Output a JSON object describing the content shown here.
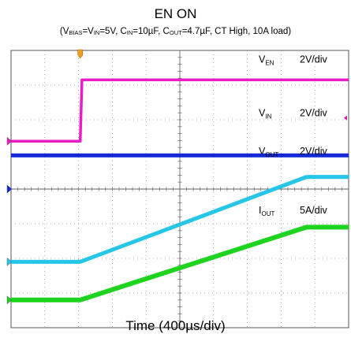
{
  "title": "EN ON",
  "subtitle": {
    "open": "(V",
    "bias_sub": "BIAS",
    "eq": "=V",
    "in_sub": "IN",
    "vin_val": "=5V, C",
    "cin_sub": "IN",
    "cin_val": "=10µF, C",
    "cout_sub": "OUT",
    "rest": "=4.7µF, CT High, 10A load)"
  },
  "xlabel": "Time (400µs/div)",
  "chart_data": {
    "type": "line",
    "title": "EN ON",
    "xlabel": "Time (400µs/div)",
    "grid": true,
    "x_divisions": 10,
    "y_divisions": 8,
    "xlim_div": [
      0,
      10
    ],
    "ylim_div": [
      -4,
      4
    ],
    "series": [
      {
        "label_main": "V",
        "label_sub": "EN",
        "scale": "2V/div",
        "color": "#e81ec4",
        "x_div": [
          0,
          2.05,
          2.1,
          10
        ],
        "y_div": [
          1.38,
          1.38,
          3.15,
          3.15
        ]
      },
      {
        "label_main": "V",
        "label_sub": "IN",
        "scale": "2V/div",
        "color": "#1428d8",
        "x_div": [
          0,
          10
        ],
        "y_div": [
          0.97,
          0.97
        ]
      },
      {
        "label_main": "V",
        "label_sub": "OUT",
        "scale": "2V/div",
        "color": "#26c6e8",
        "x_div": [
          0,
          2.05,
          8.75,
          10
        ],
        "y_div": [
          -2.1,
          -2.1,
          0.35,
          0.35
        ]
      },
      {
        "label_main": "I",
        "label_sub": "OUT",
        "scale": "5A/div",
        "color": "#1ed41e",
        "x_div": [
          0,
          2.05,
          8.75,
          10
        ],
        "y_div": [
          -3.2,
          -3.2,
          -1.1,
          -1.1
        ]
      }
    ]
  }
}
